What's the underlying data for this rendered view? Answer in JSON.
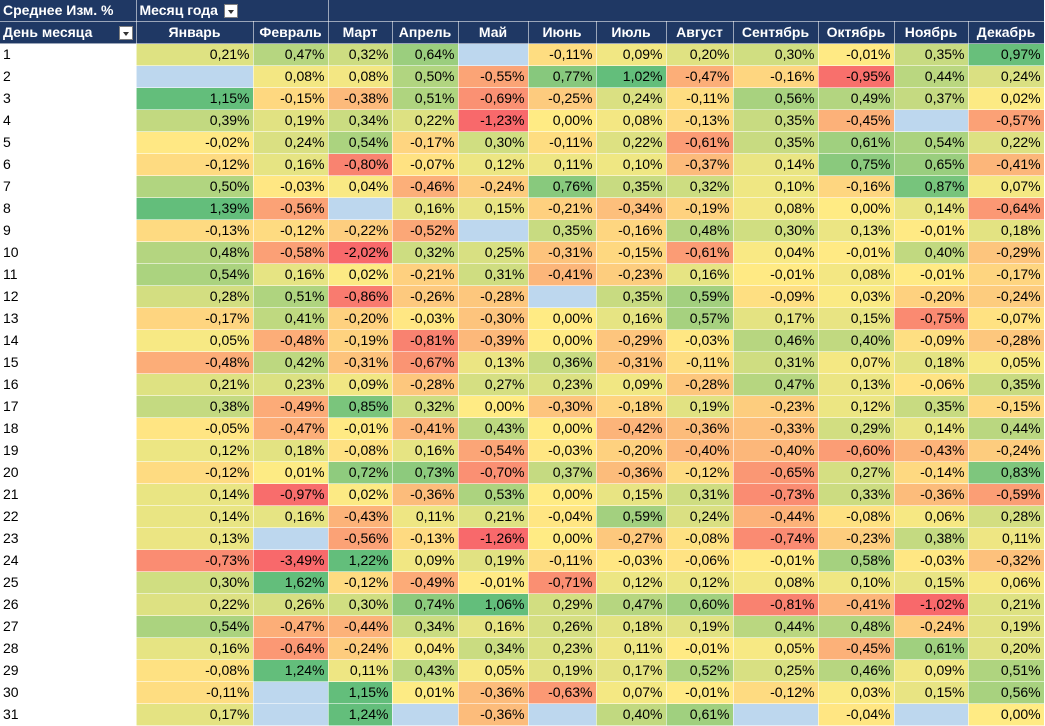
{
  "header": {
    "values_label": "Среднее Изм. %",
    "columns_label": "Месяц года",
    "rows_label": "День месяца",
    "months": [
      "Январь",
      "Февраль",
      "Март",
      "Апрель",
      "Май",
      "Июнь",
      "Июль",
      "Август",
      "Сентябрь",
      "Октябрь",
      "Ноябрь",
      "Декабрь"
    ]
  },
  "colors": {
    "header_bg": "#1f3864",
    "row_label_bg": "#bdd7ee",
    "positive_max": "#63be7b",
    "neutral": "#ffeb84",
    "negative_max": "#f8696b"
  },
  "icons": {
    "column_filter": "dropdown-arrow-icon",
    "row_filter": "dropdown-arrow-icon"
  },
  "rows": [
    {
      "day": "1",
      "values": [
        "0,21%",
        "0,47%",
        "0,32%",
        "0,64%",
        "",
        "-0,11%",
        "0,09%",
        "0,20%",
        "0,30%",
        "-0,01%",
        "0,35%",
        "0,97%"
      ]
    },
    {
      "day": "2",
      "values": [
        "",
        "0,08%",
        "0,08%",
        "0,50%",
        "-0,55%",
        "0,77%",
        "1,02%",
        "-0,47%",
        "-0,16%",
        "-0,95%",
        "0,44%",
        "0,24%"
      ]
    },
    {
      "day": "3",
      "values": [
        "1,15%",
        "-0,15%",
        "-0,38%",
        "0,51%",
        "-0,69%",
        "-0,25%",
        "0,24%",
        "-0,11%",
        "0,56%",
        "0,49%",
        "0,37%",
        "0,02%"
      ]
    },
    {
      "day": "4",
      "values": [
        "0,39%",
        "0,19%",
        "0,34%",
        "0,22%",
        "-1,23%",
        "0,00%",
        "0,08%",
        "-0,13%",
        "0,35%",
        "-0,45%",
        "",
        "-0,57%"
      ]
    },
    {
      "day": "5",
      "values": [
        "-0,02%",
        "0,24%",
        "0,54%",
        "-0,17%",
        "0,30%",
        "-0,11%",
        "0,22%",
        "-0,61%",
        "0,35%",
        "0,61%",
        "0,54%",
        "0,22%"
      ]
    },
    {
      "day": "6",
      "values": [
        "-0,12%",
        "0,16%",
        "-0,80%",
        "-0,07%",
        "0,12%",
        "0,11%",
        "0,10%",
        "-0,37%",
        "0,14%",
        "0,75%",
        "0,65%",
        "-0,41%"
      ]
    },
    {
      "day": "7",
      "values": [
        "0,50%",
        "-0,03%",
        "0,04%",
        "-0,46%",
        "-0,24%",
        "0,76%",
        "0,35%",
        "0,32%",
        "0,10%",
        "-0,16%",
        "0,87%",
        "0,07%"
      ]
    },
    {
      "day": "8",
      "values": [
        "1,39%",
        "-0,56%",
        "",
        "0,16%",
        "0,15%",
        "-0,21%",
        "-0,34%",
        "-0,19%",
        "0,08%",
        "0,00%",
        "0,14%",
        "-0,64%"
      ]
    },
    {
      "day": "9",
      "values": [
        "-0,13%",
        "-0,12%",
        "-0,22%",
        "-0,52%",
        "",
        "0,35%",
        "-0,16%",
        "0,48%",
        "0,30%",
        "0,13%",
        "-0,01%",
        "0,18%"
      ]
    },
    {
      "day": "10",
      "values": [
        "0,48%",
        "-0,58%",
        "-2,02%",
        "0,32%",
        "0,25%",
        "-0,31%",
        "-0,15%",
        "-0,61%",
        "0,04%",
        "-0,01%",
        "0,40%",
        "-0,29%"
      ]
    },
    {
      "day": "11",
      "values": [
        "0,54%",
        "0,16%",
        "0,02%",
        "-0,21%",
        "0,31%",
        "-0,41%",
        "-0,23%",
        "0,16%",
        "-0,01%",
        "0,08%",
        "-0,01%",
        "-0,17%"
      ]
    },
    {
      "day": "12",
      "values": [
        "0,28%",
        "0,51%",
        "-0,86%",
        "-0,26%",
        "-0,28%",
        "",
        "0,35%",
        "0,59%",
        "-0,09%",
        "0,03%",
        "-0,20%",
        "-0,24%"
      ]
    },
    {
      "day": "13",
      "values": [
        "-0,17%",
        "0,41%",
        "-0,20%",
        "-0,03%",
        "-0,30%",
        "0,00%",
        "0,16%",
        "0,57%",
        "0,17%",
        "0,15%",
        "-0,75%",
        "-0,07%"
      ]
    },
    {
      "day": "14",
      "values": [
        "0,05%",
        "-0,48%",
        "-0,19%",
        "-0,81%",
        "-0,39%",
        "0,00%",
        "-0,29%",
        "-0,03%",
        "0,46%",
        "0,40%",
        "-0,09%",
        "-0,28%"
      ]
    },
    {
      "day": "15",
      "values": [
        "-0,48%",
        "0,42%",
        "-0,31%",
        "-0,67%",
        "0,13%",
        "0,36%",
        "-0,31%",
        "-0,11%",
        "0,31%",
        "0,07%",
        "0,18%",
        "0,05%"
      ]
    },
    {
      "day": "16",
      "values": [
        "0,21%",
        "0,23%",
        "0,09%",
        "-0,28%",
        "0,27%",
        "0,23%",
        "0,09%",
        "-0,28%",
        "0,47%",
        "0,13%",
        "-0,06%",
        "0,35%"
      ]
    },
    {
      "day": "17",
      "values": [
        "0,38%",
        "-0,49%",
        "0,85%",
        "0,32%",
        "0,00%",
        "-0,30%",
        "-0,18%",
        "0,19%",
        "-0,23%",
        "0,12%",
        "0,35%",
        "-0,15%"
      ]
    },
    {
      "day": "18",
      "values": [
        "-0,05%",
        "-0,47%",
        "-0,01%",
        "-0,41%",
        "0,43%",
        "0,00%",
        "-0,42%",
        "-0,36%",
        "-0,33%",
        "0,29%",
        "0,14%",
        "0,44%"
      ]
    },
    {
      "day": "19",
      "values": [
        "0,12%",
        "0,18%",
        "-0,08%",
        "0,16%",
        "-0,54%",
        "-0,03%",
        "-0,20%",
        "-0,40%",
        "-0,40%",
        "-0,60%",
        "-0,43%",
        "-0,24%"
      ]
    },
    {
      "day": "20",
      "values": [
        "-0,12%",
        "0,01%",
        "0,72%",
        "0,73%",
        "-0,70%",
        "0,37%",
        "-0,36%",
        "-0,12%",
        "-0,65%",
        "0,27%",
        "-0,14%",
        "0,83%"
      ]
    },
    {
      "day": "21",
      "values": [
        "0,14%",
        "-0,97%",
        "0,02%",
        "-0,36%",
        "0,53%",
        "0,00%",
        "0,15%",
        "0,31%",
        "-0,73%",
        "0,33%",
        "-0,36%",
        "-0,59%"
      ]
    },
    {
      "day": "22",
      "values": [
        "0,14%",
        "0,16%",
        "-0,43%",
        "0,11%",
        "0,21%",
        "-0,04%",
        "0,59%",
        "0,24%",
        "-0,44%",
        "-0,08%",
        "0,06%",
        "0,28%"
      ]
    },
    {
      "day": "23",
      "values": [
        "0,13%",
        "",
        "-0,56%",
        "-0,13%",
        "-1,26%",
        "0,00%",
        "-0,27%",
        "-0,08%",
        "-0,74%",
        "-0,23%",
        "0,38%",
        "0,11%"
      ]
    },
    {
      "day": "24",
      "values": [
        "-0,73%",
        "-3,49%",
        "1,22%",
        "0,09%",
        "0,19%",
        "-0,11%",
        "-0,03%",
        "-0,06%",
        "-0,01%",
        "0,58%",
        "-0,03%",
        "-0,32%"
      ]
    },
    {
      "day": "25",
      "values": [
        "0,30%",
        "1,62%",
        "-0,12%",
        "-0,49%",
        "-0,01%",
        "-0,71%",
        "0,12%",
        "0,12%",
        "0,08%",
        "0,10%",
        "0,15%",
        "0,06%"
      ]
    },
    {
      "day": "26",
      "values": [
        "0,22%",
        "0,26%",
        "0,30%",
        "0,74%",
        "1,06%",
        "0,29%",
        "0,47%",
        "0,60%",
        "-0,81%",
        "-0,41%",
        "-1,02%",
        "0,21%"
      ]
    },
    {
      "day": "27",
      "values": [
        "0,54%",
        "-0,47%",
        "-0,44%",
        "0,34%",
        "0,16%",
        "0,26%",
        "0,18%",
        "0,19%",
        "0,44%",
        "0,48%",
        "-0,24%",
        "0,19%"
      ]
    },
    {
      "day": "28",
      "values": [
        "0,16%",
        "-0,64%",
        "-0,24%",
        "0,04%",
        "0,34%",
        "0,23%",
        "0,11%",
        "-0,01%",
        "0,05%",
        "-0,45%",
        "0,61%",
        "0,20%"
      ]
    },
    {
      "day": "29",
      "values": [
        "-0,08%",
        "1,24%",
        "0,11%",
        "0,43%",
        "0,05%",
        "0,19%",
        "0,17%",
        "0,52%",
        "0,25%",
        "0,46%",
        "0,09%",
        "0,51%"
      ]
    },
    {
      "day": "30",
      "values": [
        "-0,11%",
        "",
        "1,15%",
        "0,01%",
        "-0,36%",
        "-0,63%",
        "0,07%",
        "-0,01%",
        "-0,12%",
        "0,03%",
        "0,15%",
        "0,56%"
      ]
    },
    {
      "day": "31",
      "values": [
        "0,17%",
        "",
        "1,24%",
        "",
        "-0,36%",
        "",
        "0,40%",
        "0,61%",
        "",
        "-0,04%",
        "",
        "0,00%"
      ]
    }
  ]
}
